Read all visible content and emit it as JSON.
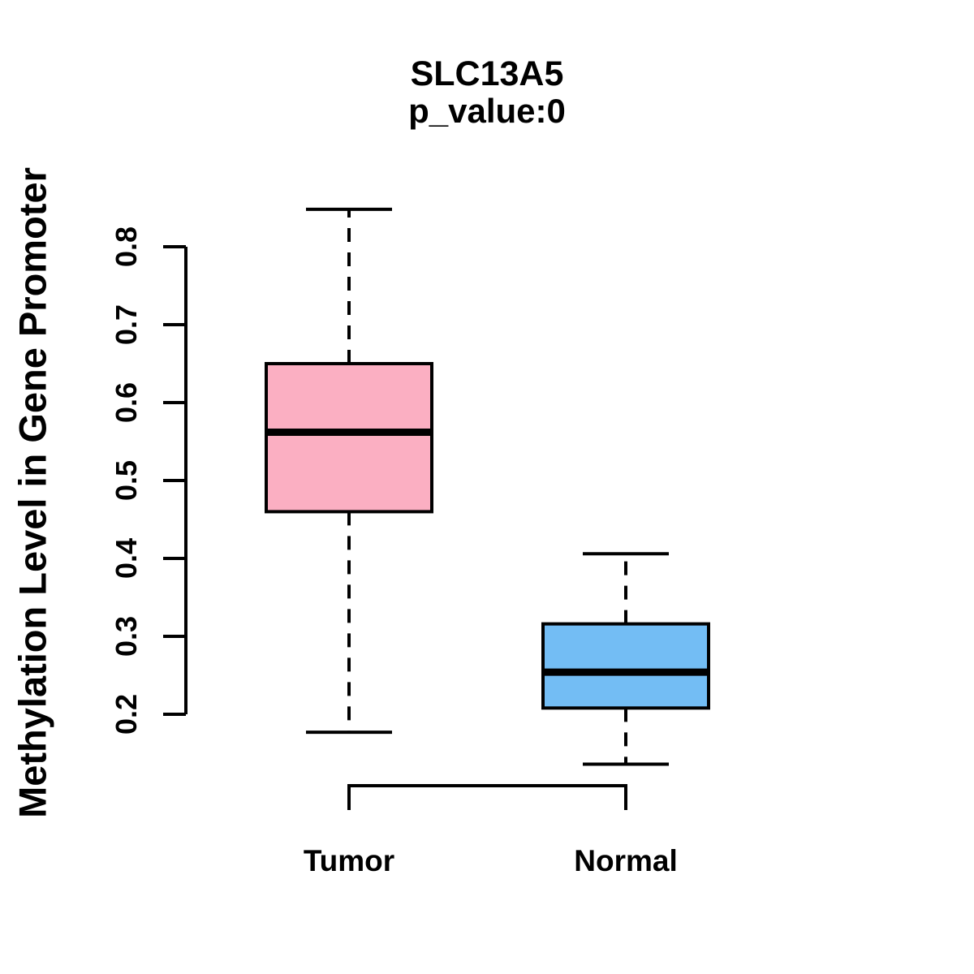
{
  "page": {
    "background_color": "#ffffff",
    "foreground_color": "#000000"
  },
  "chart_data": {
    "type": "boxplot",
    "title": "SLC13A5",
    "subtitle": "p_value:0",
    "ylabel": "Methylation Level in Gene Promoter",
    "xlabel": "",
    "categories": [
      "Tumor",
      "Normal"
    ],
    "y_ticks": [
      0.2,
      0.3,
      0.4,
      0.5,
      0.6,
      0.7,
      0.8
    ],
    "ylim": [
      0.2,
      0.8
    ],
    "grid": false,
    "legend_position": "none",
    "stroke_color": "#000000",
    "series": [
      {
        "name": "Tumor",
        "fill_color": "#FBAFC2",
        "stats": {
          "whisker_low": 0.177,
          "q1": 0.46,
          "median": 0.562,
          "q3": 0.65,
          "whisker_high": 0.848
        }
      },
      {
        "name": "Normal",
        "fill_color": "#73BDF4",
        "stats": {
          "whisker_low": 0.136,
          "q1": 0.208,
          "median": 0.254,
          "q3": 0.316,
          "whisker_high": 0.406
        }
      }
    ]
  }
}
